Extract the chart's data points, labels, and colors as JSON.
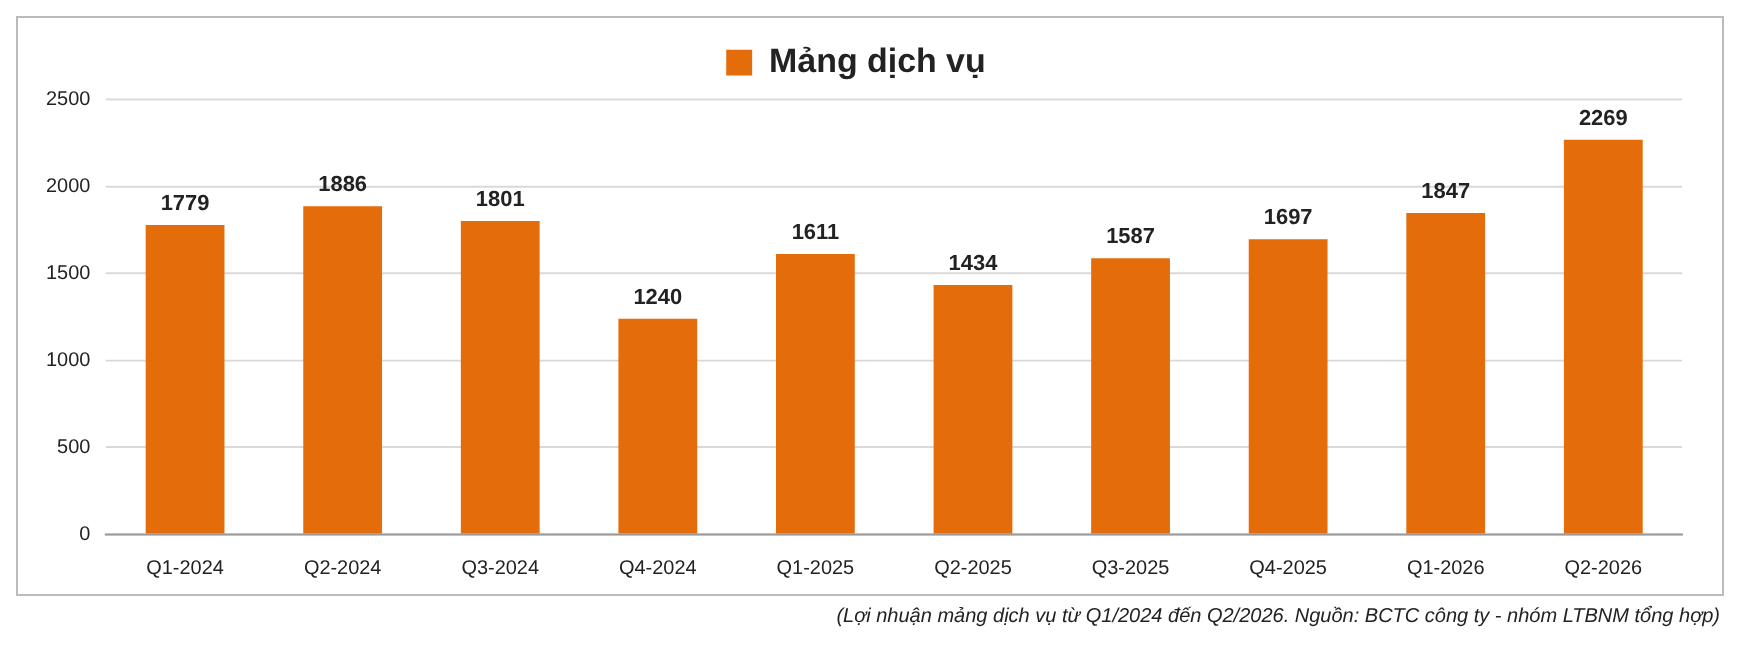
{
  "chart_data": {
    "type": "bar",
    "categories": [
      "Q1-2024",
      "Q2-2024",
      "Q3-2024",
      "Q4-2024",
      "Q1-2025",
      "Q2-2025",
      "Q3-2025",
      "Q4-2025",
      "Q1-2026",
      "Q2-2026"
    ],
    "series": [
      {
        "name": "Mảng dịch vụ",
        "color": "#e46c0a",
        "values": [
          1779,
          1886,
          1801,
          1240,
          1611,
          1434,
          1587,
          1697,
          1847,
          2269
        ]
      }
    ],
    "ylim": [
      0,
      2500
    ],
    "yticks": [
      0,
      500,
      1000,
      1500,
      2000,
      2500
    ],
    "grid": "y",
    "legend": "top",
    "data_labels": true,
    "annotations": [
      "(Lợi nhuận mảng dịch vụ từ Q1/2024 đến Q2/2026. Nguồn: BCTC công ty - nhóm LTBNM tổng hợp)"
    ]
  }
}
